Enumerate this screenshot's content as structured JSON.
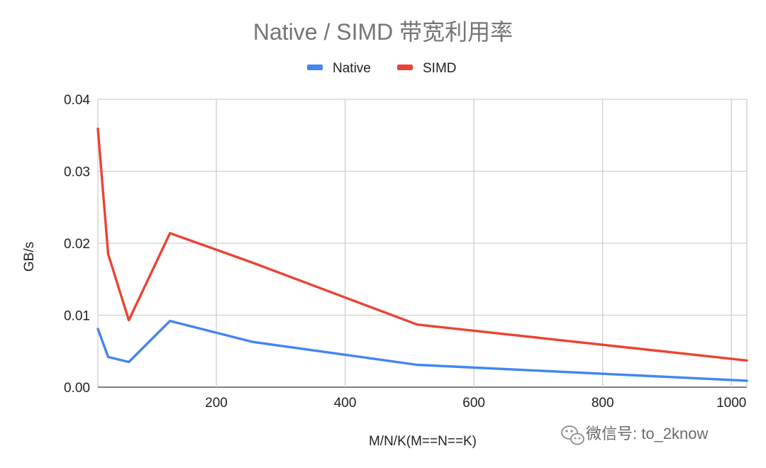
{
  "chart_data": {
    "type": "line",
    "title": "Native / SIMD 带宽利用率",
    "xlabel": "M/N/K(M==N==K)",
    "ylabel": "GB/s",
    "xlim": [
      16,
      1024
    ],
    "ylim": [
      0,
      0.04
    ],
    "x_ticks": [
      200,
      400,
      600,
      800,
      1000
    ],
    "x_tick_labels": [
      "200",
      "400",
      "600",
      "800",
      "1000"
    ],
    "y_ticks": [
      0,
      0.01,
      0.02,
      0.03,
      0.04
    ],
    "y_tick_labels": [
      "0.00",
      "0.01",
      "0.02",
      "0.03",
      "0.04"
    ],
    "grid": true,
    "legend_position": "top",
    "series": [
      {
        "name": "Native",
        "color": "#4285f4",
        "x": [
          16,
          32,
          64,
          128,
          256,
          512,
          1024
        ],
        "y": [
          0.0081,
          0.0042,
          0.0035,
          0.0092,
          0.0063,
          0.0031,
          0.0009
        ]
      },
      {
        "name": "SIMD",
        "color": "#ea4335",
        "x": [
          16,
          32,
          64,
          128,
          256,
          512,
          1024
        ],
        "y": [
          0.0359,
          0.0185,
          0.0093,
          0.0214,
          0.0173,
          0.0087,
          0.0037
        ]
      }
    ]
  },
  "watermark": {
    "icon": "wechat-icon",
    "text": "微信号: to_2know"
  }
}
